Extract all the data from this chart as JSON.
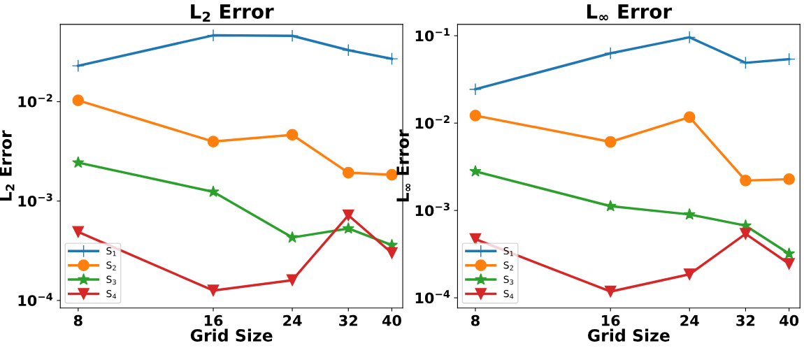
{
  "chart_data": [
    {
      "type": "line",
      "title": "L$_{2}$ Error",
      "xlabel": "Grid Size",
      "ylabel": "L$_{2}$ Error",
      "x": [
        8,
        16,
        24,
        32,
        40
      ],
      "log": "xy",
      "grid": false,
      "legend": "bottom left",
      "xlim": [
        7.3,
        42.3
      ],
      "xticks": [
        8,
        16,
        24,
        32,
        40
      ],
      "ylim": [
        8.4e-05,
        0.06
      ],
      "yticks": [
        {
          "value": 0.01,
          "label": "10$^{−2}$"
        },
        {
          "value": 0.001,
          "label": "10$^{−3}$"
        },
        {
          "value": 0.0001,
          "label": "10$^{−4}$"
        }
      ],
      "series": [
        {
          "name": "S$_{1}$",
          "color": "#1f77b4",
          "marker": "cross",
          "values": [
            0.023,
            0.0465,
            0.046,
            0.033,
            0.027
          ]
        },
        {
          "name": "S$_{2}$",
          "color": "#ff7f0e",
          "marker": "circle",
          "values": [
            0.0103,
            0.00397,
            0.00464,
            0.00193,
            0.00184
          ]
        },
        {
          "name": "S$_{3}$",
          "color": "#2ca02c",
          "marker": "star",
          "values": [
            0.00244,
            0.00124,
            0.00043,
            0.00053,
            0.00036
          ]
        },
        {
          "name": "S$_{4}$",
          "color": "#d62728",
          "marker": "triangle",
          "values": [
            0.00049,
            0.000126,
            0.00016,
            0.00072,
            0.0003
          ]
        }
      ]
    },
    {
      "type": "line",
      "title": "L$_{∞}$ Error",
      "xlabel": "Grid Size",
      "ylabel": "L$_{∞}$ Error",
      "x": [
        8,
        16,
        24,
        32,
        40
      ],
      "log": "xy",
      "grid": false,
      "legend": "bottom left",
      "xlim": [
        7.3,
        42.3
      ],
      "xticks": [
        8,
        16,
        24,
        32,
        40
      ],
      "ylim": [
        7.65e-05,
        0.135
      ],
      "yticks": [
        {
          "value": 0.1,
          "label": "10$^{−1}$"
        },
        {
          "value": 0.01,
          "label": "10$^{−2}$"
        },
        {
          "value": 0.001,
          "label": "10$^{−3}$"
        },
        {
          "value": 0.0001,
          "label": "10$^{−4}$"
        }
      ],
      "series": [
        {
          "name": "S$_{1}$",
          "color": "#1f77b4",
          "marker": "cross",
          "values": [
            0.0244,
            0.063,
            0.096,
            0.049,
            0.054
          ]
        },
        {
          "name": "S$_{2}$",
          "color": "#ff7f0e",
          "marker": "circle",
          "values": [
            0.0122,
            0.0061,
            0.0117,
            0.0022,
            0.00228
          ]
        },
        {
          "name": "S$_{3}$",
          "color": "#2ca02c",
          "marker": "star",
          "values": [
            0.0028,
            0.00112,
            0.0009,
            0.00067,
            0.00032
          ]
        },
        {
          "name": "S$_{4}$",
          "color": "#d62728",
          "marker": "triangle",
          "values": [
            0.00047,
            0.000118,
            0.000186,
            0.00054,
            0.000245
          ]
        }
      ]
    }
  ]
}
